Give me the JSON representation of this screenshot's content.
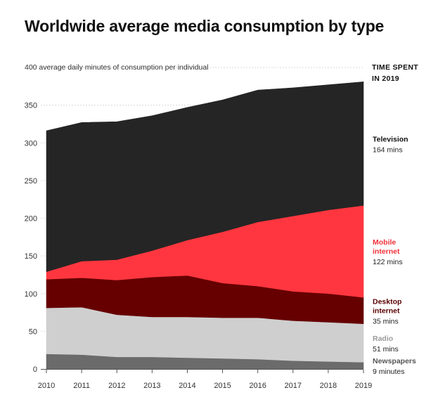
{
  "chart_data": {
    "type": "area",
    "stacked": true,
    "title": "Worldwide average media consumption by type",
    "ylabel": "400 average daily minutes of consumption per individual",
    "right_header": [
      "TIME SPENT",
      "IN 2019"
    ],
    "x": [
      2010,
      2011,
      2012,
      2013,
      2014,
      2015,
      2016,
      2017,
      2018,
      2019
    ],
    "ylim": [
      0,
      400
    ],
    "yticks": [
      0,
      50,
      100,
      150,
      200,
      250,
      300,
      350
    ],
    "series": [
      {
        "name": "Newspapers",
        "label_lines": [
          "Newspapers"
        ],
        "annotation": "9 minutes",
        "color": "#6b6b6b",
        "label_color": "#555555",
        "values": [
          20,
          19,
          16,
          16,
          15,
          14,
          13,
          11,
          10,
          9
        ]
      },
      {
        "name": "Radio",
        "label_lines": [
          "Radio"
        ],
        "annotation": "51 mins",
        "color": "#cfcfcf",
        "label_color": "#9a9a9a",
        "values": [
          61,
          63,
          56,
          53,
          54,
          54,
          55,
          53,
          52,
          51
        ]
      },
      {
        "name": "Desktop internet",
        "label_lines": [
          "Desktop",
          "internet"
        ],
        "annotation": "35 mins",
        "color": "#660000",
        "label_color": "#5a0000",
        "values": [
          38,
          39,
          46,
          53,
          55,
          46,
          42,
          39,
          38,
          35
        ]
      },
      {
        "name": "Mobile internet",
        "label_lines": [
          "Mobile",
          "internet"
        ],
        "annotation": "122 mins",
        "color": "#ff363f",
        "label_color": "#f0313a",
        "values": [
          10,
          22,
          27,
          35,
          47,
          68,
          85,
          100,
          111,
          122
        ]
      },
      {
        "name": "Television",
        "label_lines": [
          "Television"
        ],
        "annotation": "164 mins",
        "color": "#252525",
        "label_color": "#111111",
        "values": [
          187,
          184,
          183,
          179,
          176,
          175,
          175,
          170,
          166,
          164
        ]
      }
    ],
    "grid": true,
    "legend": "right"
  }
}
